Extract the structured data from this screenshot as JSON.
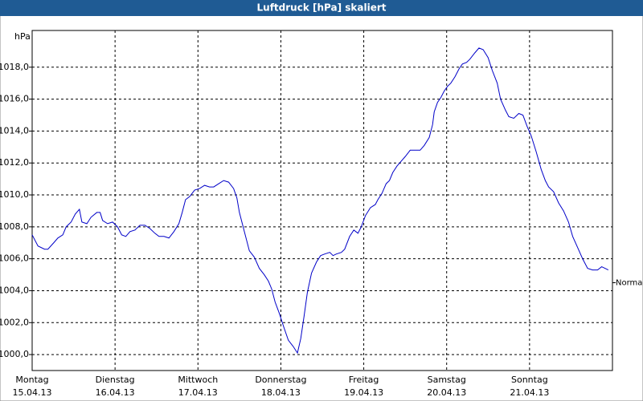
{
  "chart_data": {
    "type": "line",
    "title": "Luftdruck [hPa] skaliert",
    "ylabel": "hPa",
    "x": [
      0,
      0.07,
      0.15,
      0.19,
      0.26,
      0.31,
      0.37,
      0.41,
      0.47,
      0.52,
      0.57,
      0.6,
      0.66,
      0.71,
      0.78,
      0.82,
      0.85,
      0.91,
      0.97,
      1.03,
      1.08,
      1.13,
      1.18,
      1.24,
      1.3,
      1.36,
      1.42,
      1.48,
      1.53,
      1.59,
      1.65,
      1.71,
      1.77,
      1.81,
      1.85,
      1.9,
      1.96,
      2.02,
      2.08,
      2.14,
      2.19,
      2.25,
      2.31,
      2.37,
      2.43,
      2.47,
      2.5,
      2.56,
      2.62,
      2.68,
      2.74,
      2.8,
      2.85,
      2.89,
      2.93,
      2.98,
      3.03,
      3.09,
      3.15,
      3.2,
      3.24,
      3.28,
      3.32,
      3.37,
      3.43,
      3.48,
      3.53,
      3.59,
      3.63,
      3.67,
      3.73,
      3.77,
      3.83,
      3.88,
      3.93,
      3.97,
      4.02,
      4.08,
      4.14,
      4.17,
      4.22,
      4.27,
      4.31,
      4.35,
      4.4,
      4.45,
      4.5,
      4.56,
      4.63,
      4.68,
      4.73,
      4.79,
      4.83,
      4.85,
      4.89,
      4.93,
      4.97,
      5.01,
      5.05,
      5.1,
      5.15,
      5.19,
      5.24,
      5.28,
      5.34,
      5.39,
      5.44,
      5.5,
      5.55,
      5.61,
      5.65,
      5.71,
      5.75,
      5.81,
      5.87,
      5.92,
      5.97,
      6.02,
      6.08,
      6.14,
      6.19,
      6.23,
      6.29,
      6.35,
      6.41,
      6.47,
      6.52,
      6.58,
      6.64,
      6.7,
      6.76,
      6.82,
      6.87,
      6.95
    ],
    "series": [
      {
        "color": "#0000c8",
        "values": [
          1007.5,
          1006.8,
          1006.6,
          1006.6,
          1007.0,
          1007.3,
          1007.5,
          1008.0,
          1008.3,
          1008.8,
          1009.1,
          1008.3,
          1008.2,
          1008.6,
          1008.9,
          1008.9,
          1008.4,
          1008.2,
          1008.3,
          1008.0,
          1007.5,
          1007.4,
          1007.7,
          1007.8,
          1008.1,
          1008.1,
          1007.9,
          1007.6,
          1007.4,
          1007.4,
          1007.3,
          1007.7,
          1008.2,
          1008.9,
          1009.7,
          1009.9,
          1010.3,
          1010.4,
          1010.6,
          1010.5,
          1010.5,
          1010.7,
          1010.9,
          1010.8,
          1010.4,
          1009.8,
          1008.9,
          1007.7,
          1006.5,
          1006.1,
          1005.4,
          1005.0,
          1004.6,
          1004.1,
          1003.3,
          1002.6,
          1001.8,
          1000.9,
          1000.5,
          1000.1,
          1001.0,
          1002.4,
          1003.9,
          1005.1,
          1005.8,
          1006.2,
          1006.3,
          1006.4,
          1006.2,
          1006.3,
          1006.4,
          1006.6,
          1007.4,
          1007.8,
          1007.6,
          1008.0,
          1008.7,
          1009.2,
          1009.4,
          1009.7,
          1010.1,
          1010.7,
          1010.9,
          1011.4,
          1011.8,
          1012.1,
          1012.4,
          1012.8,
          1012.8,
          1012.8,
          1013.1,
          1013.6,
          1014.4,
          1015.2,
          1015.8,
          1016.1,
          1016.5,
          1016.8,
          1017.0,
          1017.4,
          1017.9,
          1018.2,
          1018.3,
          1018.5,
          1018.9,
          1019.2,
          1019.1,
          1018.6,
          1017.8,
          1017.0,
          1016.0,
          1015.3,
          1014.9,
          1014.8,
          1015.1,
          1015.0,
          1014.3,
          1013.7,
          1012.7,
          1011.6,
          1010.9,
          1010.5,
          1010.2,
          1009.5,
          1009.0,
          1008.3,
          1007.4,
          1006.7,
          1006.0,
          1005.4,
          1005.3,
          1005.3,
          1005.5,
          1005.3
        ]
      }
    ],
    "xlim": [
      0,
      7
    ],
    "xticks": [
      {
        "value": 0,
        "label": "Montag",
        "date": "15.04.13"
      },
      {
        "value": 1,
        "label": "Dienstag",
        "date": "16.04.13"
      },
      {
        "value": 2,
        "label": "Mittwoch",
        "date": "17.04.13"
      },
      {
        "value": 3,
        "label": "Donnerstag",
        "date": "18.04.13"
      },
      {
        "value": 4,
        "label": "Freitag",
        "date": "19.04.13"
      },
      {
        "value": 5,
        "label": "Samstag",
        "date": "20.04.13"
      },
      {
        "value": 6,
        "label": "Sonntag",
        "date": "21.04.13"
      }
    ],
    "ylim": [
      999.0,
      1020.3
    ],
    "yticks": [
      {
        "value": 1000,
        "label": "1000,0"
      },
      {
        "value": 1002,
        "label": "1002,0"
      },
      {
        "value": 1004,
        "label": "1004,0"
      },
      {
        "value": 1006,
        "label": "1006,0"
      },
      {
        "value": 1008,
        "label": "1008,0"
      },
      {
        "value": 1010,
        "label": "1010,0"
      },
      {
        "value": 1012,
        "label": "1012,0"
      },
      {
        "value": 1014,
        "label": "1014,0"
      },
      {
        "value": 1016,
        "label": "1016,0"
      },
      {
        "value": 1018,
        "label": "1018,0"
      }
    ],
    "grid": true,
    "annotations": [
      {
        "text": "Normal",
        "value": 1004.5
      }
    ]
  }
}
